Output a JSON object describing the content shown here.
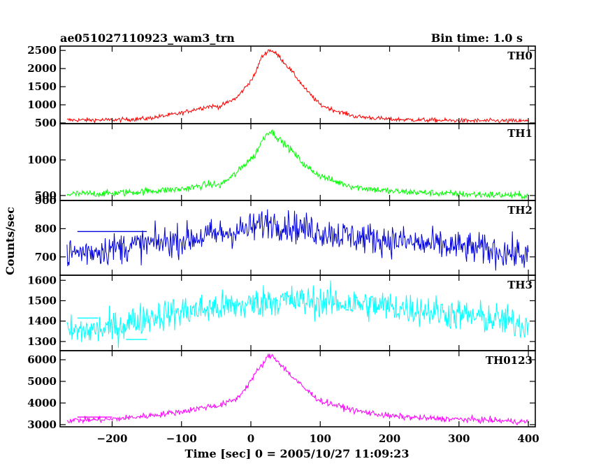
{
  "header": {
    "title": "ae051027110923_wam3_trn",
    "bin_time": "Bin time: 1.0 s"
  },
  "axes": {
    "xlabel": "Time [sec] 0 = 2005/10/27 11:09:23",
    "ylabel": "Counts/sec"
  },
  "chart_data": {
    "type": "line",
    "title": "ae051027110923_wam3_trn",
    "subtitle": "Bin time: 1.0 s",
    "xlabel": "Time [sec] 0 = 2005/10/27 11:09:23",
    "ylabel": "Counts/sec",
    "xlim": [
      -275,
      410
    ],
    "xticks": [
      -200,
      -100,
      0,
      100,
      200,
      300,
      400
    ],
    "xtick_labels": [
      "−200",
      "−100",
      "0",
      "100",
      "200",
      "300",
      "400"
    ],
    "grid": false,
    "panels": [
      {
        "name": "TH0",
        "color": "#ff0000",
        "ylim": [
          480,
          2620
        ],
        "yticks": [
          500,
          1000,
          1500,
          2000,
          2500
        ],
        "ytick_labels": [
          "500",
          "1000",
          "1500",
          "2000",
          "2500"
        ],
        "x": [
          -260,
          -200,
          -150,
          -100,
          -80,
          -60,
          -45,
          -20,
          -5,
          5,
          15,
          25,
          30,
          40,
          60,
          80,
          100,
          120,
          150,
          200,
          250,
          300,
          350,
          400
        ],
        "y": [
          580,
          580,
          620,
          770,
          880,
          960,
          950,
          1200,
          1550,
          1800,
          2300,
          2500,
          2500,
          2350,
          1900,
          1400,
          1000,
          850,
          680,
          600,
          580,
          560,
          560,
          550
        ],
        "noise": 30
      },
      {
        "name": "TH1",
        "color": "#00ff00",
        "ylim": [
          430,
          1510
        ],
        "yticks": [
          500,
          1000
        ],
        "ytick_labels": [
          "500",
          "1000"
        ],
        "x": [
          -260,
          -200,
          -150,
          -100,
          -80,
          -60,
          -45,
          -20,
          -5,
          5,
          15,
          25,
          30,
          40,
          60,
          80,
          100,
          120,
          150,
          200,
          250,
          300,
          350,
          400
        ],
        "y": [
          520,
          530,
          560,
          590,
          620,
          660,
          640,
          820,
          980,
          1050,
          1250,
          1400,
          1400,
          1300,
          1120,
          900,
          780,
          700,
          620,
          560,
          540,
          520,
          510,
          500
        ],
        "noise": 25
      },
      {
        "name": "TH2",
        "color": "#0000dd",
        "ylim": [
          635,
          900
        ],
        "yticks": [
          700,
          800,
          900
        ],
        "ytick_labels": [
          "700",
          "800",
          "900"
        ],
        "x": [
          -260,
          -200,
          -100,
          0,
          25,
          50,
          100,
          150,
          200,
          250,
          300,
          350,
          400
        ],
        "y": [
          712,
          730,
          760,
          800,
          825,
          812,
          790,
          770,
          760,
          745,
          735,
          722,
          705
        ],
        "noise": 28,
        "bin_segments": [
          {
            "x0": -250,
            "x1": -200,
            "y": 790
          },
          {
            "x0": -200,
            "x1": -150,
            "y": 790
          }
        ]
      },
      {
        "name": "TH3",
        "color": "#00ffff",
        "ylim": [
          1255,
          1625
        ],
        "yticks": [
          1300,
          1400,
          1500,
          1600
        ],
        "ytick_labels": [
          "1300",
          "1400",
          "1500",
          "1600"
        ],
        "x": [
          -260,
          -200,
          -150,
          -100,
          -50,
          0,
          25,
          50,
          100,
          150,
          200,
          250,
          300,
          350,
          400
        ],
        "y": [
          1345,
          1365,
          1420,
          1445,
          1465,
          1480,
          1505,
          1500,
          1495,
          1485,
          1470,
          1455,
          1430,
          1410,
          1380
        ],
        "noise": 40,
        "bin_segments": [
          {
            "x0": -250,
            "x1": -220,
            "y": 1415
          },
          {
            "x0": -180,
            "x1": -150,
            "y": 1310
          }
        ]
      },
      {
        "name": "TH0123",
        "color": "#ff00ff",
        "ylim": [
          2900,
          6420
        ],
        "yticks": [
          3000,
          4000,
          5000,
          6000
        ],
        "ytick_labels": [
          "3000",
          "4000",
          "5000",
          "6000"
        ],
        "x": [
          -260,
          -200,
          -150,
          -100,
          -60,
          -45,
          -20,
          -5,
          5,
          15,
          25,
          30,
          40,
          60,
          80,
          100,
          150,
          200,
          250,
          300,
          350,
          400
        ],
        "y": [
          3200,
          3250,
          3400,
          3600,
          3850,
          3880,
          4200,
          4800,
          5300,
          5700,
          6150,
          6200,
          5900,
          5200,
          4600,
          4100,
          3650,
          3400,
          3300,
          3250,
          3200,
          3120
        ],
        "noise": 70,
        "bin_segments": [
          {
            "x0": -250,
            "x1": -200,
            "y": 3350
          }
        ]
      }
    ]
  }
}
